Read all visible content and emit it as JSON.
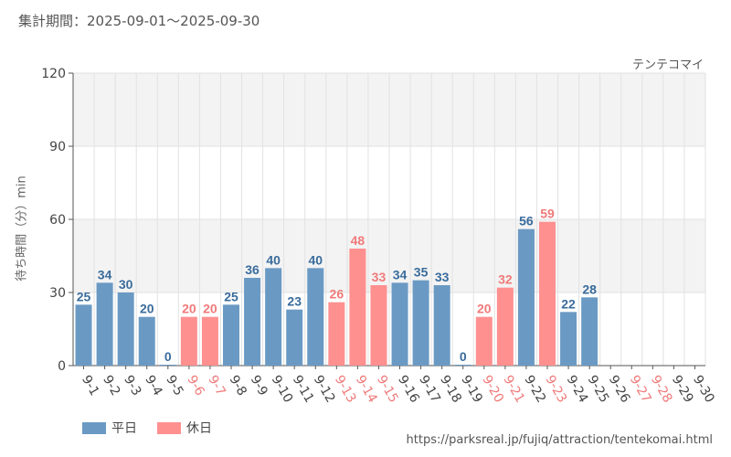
{
  "header": {
    "period": "集計期間：2025-09-01〜2025-09-30",
    "attraction": "テンテコマイ"
  },
  "footer": {
    "source_url": "https://parksreal.jp/fujiq/attraction/tentekomai.html"
  },
  "colors": {
    "weekday": "#6a9ac4",
    "holiday": "#ff9090",
    "weekday_text": "#3a6c9c",
    "holiday_text": "#f07a7a",
    "band": "#f3f3f3",
    "grid": "#e2e2e2",
    "axis": "#555555"
  },
  "chart_data": {
    "type": "bar",
    "xlabel": "",
    "ylabel": "待ち時間（分）min",
    "ylim": [
      0,
      120
    ],
    "yticks": [
      0,
      30,
      60,
      90,
      120
    ],
    "grid": true,
    "legend_position": "bottom-left",
    "legend": [
      {
        "name": "平日",
        "color": "#6a9ac4"
      },
      {
        "name": "休日",
        "color": "#ff9090"
      }
    ],
    "categories": [
      "9-1",
      "9-2",
      "9-3",
      "9-4",
      "9-5",
      "9-6",
      "9-7",
      "9-8",
      "9-9",
      "9-10",
      "9-11",
      "9-12",
      "9-13",
      "9-14",
      "9-15",
      "9-16",
      "9-17",
      "9-18",
      "9-19",
      "9-20",
      "9-21",
      "9-22",
      "9-23",
      "9-24",
      "9-25",
      "9-26",
      "9-27",
      "9-28",
      "9-29",
      "9-30"
    ],
    "values": [
      25,
      34,
      30,
      20,
      0,
      20,
      20,
      25,
      36,
      40,
      23,
      40,
      26,
      48,
      33,
      34,
      35,
      33,
      0,
      20,
      32,
      56,
      59,
      22,
      28,
      null,
      null,
      null,
      null,
      null
    ],
    "day_type": [
      "weekday",
      "weekday",
      "weekday",
      "weekday",
      "weekday",
      "holiday",
      "holiday",
      "weekday",
      "weekday",
      "weekday",
      "weekday",
      "weekday",
      "holiday",
      "holiday",
      "holiday",
      "weekday",
      "weekday",
      "weekday",
      "weekday",
      "holiday",
      "holiday",
      "weekday",
      "holiday",
      "weekday",
      "weekday",
      "weekday",
      "holiday",
      "holiday",
      "weekday",
      "weekday"
    ]
  }
}
